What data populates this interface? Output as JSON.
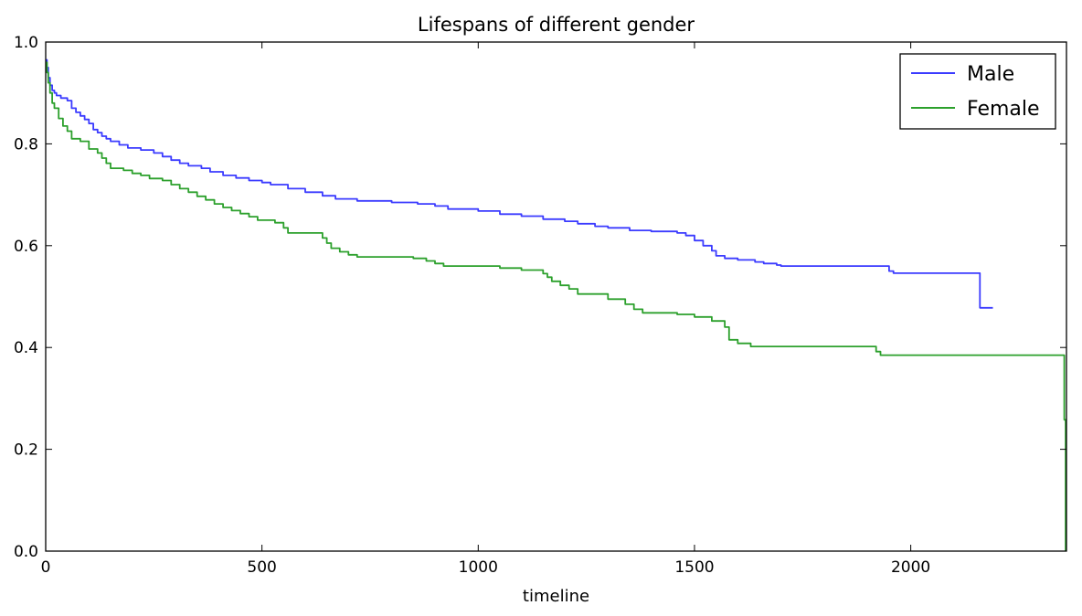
{
  "chart_data": {
    "type": "line",
    "title": "Lifespans of different gender",
    "xlabel": "timeline",
    "ylabel": "",
    "xlim": [
      0,
      2360
    ],
    "ylim": [
      0.0,
      1.0
    ],
    "x_ticks": [
      0,
      500,
      1000,
      1500,
      2000
    ],
    "x_tick_labels": [
      "0",
      "500",
      "1000",
      "1500",
      "2000"
    ],
    "y_ticks": [
      0.0,
      0.2,
      0.4,
      0.6,
      0.8,
      1.0
    ],
    "y_tick_labels": [
      "0.0",
      "0.2",
      "0.4",
      "0.6",
      "0.8",
      "1.0"
    ],
    "grid": false,
    "legend_position": "top-right",
    "series": [
      {
        "name": "Male",
        "color": "#3b3bff",
        "step": true,
        "x": [
          0,
          3,
          6,
          10,
          15,
          20,
          25,
          35,
          50,
          60,
          70,
          80,
          90,
          100,
          110,
          120,
          130,
          140,
          150,
          170,
          190,
          220,
          250,
          270,
          290,
          310,
          330,
          360,
          380,
          410,
          440,
          470,
          500,
          520,
          560,
          600,
          640,
          670,
          720,
          800,
          860,
          900,
          930,
          1000,
          1050,
          1100,
          1150,
          1200,
          1230,
          1270,
          1300,
          1350,
          1400,
          1460,
          1480,
          1500,
          1520,
          1540,
          1550,
          1570,
          1600,
          1640,
          1660,
          1690,
          1700,
          1950,
          1960,
          2150,
          2160,
          2190
        ],
        "values": [
          0.965,
          0.95,
          0.93,
          0.915,
          0.905,
          0.9,
          0.895,
          0.89,
          0.885,
          0.87,
          0.862,
          0.855,
          0.848,
          0.84,
          0.828,
          0.822,
          0.815,
          0.81,
          0.805,
          0.798,
          0.792,
          0.788,
          0.782,
          0.775,
          0.768,
          0.762,
          0.757,
          0.752,
          0.745,
          0.738,
          0.733,
          0.728,
          0.724,
          0.72,
          0.712,
          0.705,
          0.698,
          0.692,
          0.688,
          0.685,
          0.682,
          0.678,
          0.672,
          0.668,
          0.662,
          0.658,
          0.652,
          0.648,
          0.643,
          0.638,
          0.635,
          0.63,
          0.628,
          0.625,
          0.62,
          0.61,
          0.6,
          0.59,
          0.58,
          0.575,
          0.572,
          0.568,
          0.565,
          0.562,
          0.56,
          0.55,
          0.546,
          0.546,
          0.478,
          0.478
        ]
      },
      {
        "name": "Female",
        "color": "#2ca02c",
        "step": true,
        "x": [
          0,
          3,
          6,
          10,
          15,
          20,
          30,
          40,
          50,
          60,
          80,
          100,
          120,
          130,
          140,
          150,
          180,
          200,
          220,
          240,
          270,
          290,
          310,
          330,
          350,
          370,
          390,
          410,
          430,
          450,
          470,
          490,
          530,
          550,
          560,
          640,
          650,
          660,
          680,
          700,
          720,
          850,
          880,
          900,
          920,
          1050,
          1100,
          1150,
          1160,
          1170,
          1190,
          1210,
          1230,
          1300,
          1340,
          1360,
          1380,
          1460,
          1500,
          1540,
          1570,
          1580,
          1600,
          1630,
          1920,
          1930,
          2190,
          2355,
          2358
        ],
        "values": [
          0.96,
          0.94,
          0.92,
          0.9,
          0.88,
          0.87,
          0.85,
          0.835,
          0.825,
          0.81,
          0.805,
          0.79,
          0.782,
          0.772,
          0.762,
          0.752,
          0.748,
          0.742,
          0.738,
          0.732,
          0.728,
          0.72,
          0.712,
          0.705,
          0.697,
          0.69,
          0.682,
          0.675,
          0.669,
          0.663,
          0.657,
          0.65,
          0.645,
          0.635,
          0.625,
          0.615,
          0.605,
          0.595,
          0.588,
          0.582,
          0.578,
          0.575,
          0.57,
          0.565,
          0.56,
          0.556,
          0.552,
          0.545,
          0.538,
          0.53,
          0.522,
          0.515,
          0.505,
          0.495,
          0.485,
          0.475,
          0.468,
          0.465,
          0.46,
          0.452,
          0.44,
          0.415,
          0.408,
          0.402,
          0.392,
          0.385,
          0.385,
          0.258,
          0.0
        ]
      }
    ]
  }
}
